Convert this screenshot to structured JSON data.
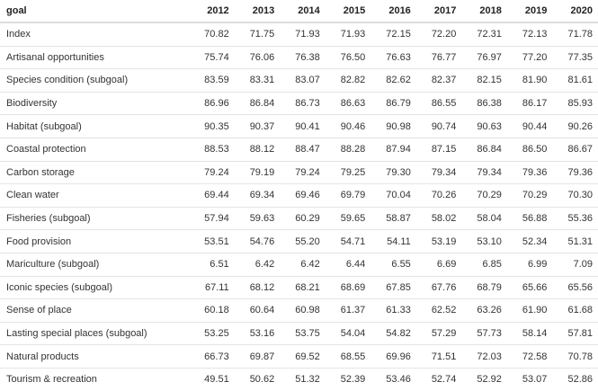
{
  "table": {
    "header_goal": "goal",
    "years": [
      "2012",
      "2013",
      "2014",
      "2015",
      "2016",
      "2017",
      "2018",
      "2019",
      "2020"
    ],
    "rows": [
      {
        "goal": "Index",
        "values": [
          "70.82",
          "71.75",
          "71.93",
          "71.93",
          "72.15",
          "72.20",
          "72.31",
          "72.13",
          "71.78"
        ]
      },
      {
        "goal": "Artisanal opportunities",
        "values": [
          "75.74",
          "76.06",
          "76.38",
          "76.50",
          "76.63",
          "76.77",
          "76.97",
          "77.20",
          "77.35"
        ]
      },
      {
        "goal": "Species condition (subgoal)",
        "values": [
          "83.59",
          "83.31",
          "83.07",
          "82.82",
          "82.62",
          "82.37",
          "82.15",
          "81.90",
          "81.61"
        ]
      },
      {
        "goal": "Biodiversity",
        "values": [
          "86.96",
          "86.84",
          "86.73",
          "86.63",
          "86.79",
          "86.55",
          "86.38",
          "86.17",
          "85.93"
        ]
      },
      {
        "goal": "Habitat (subgoal)",
        "values": [
          "90.35",
          "90.37",
          "90.41",
          "90.46",
          "90.98",
          "90.74",
          "90.63",
          "90.44",
          "90.26"
        ]
      },
      {
        "goal": "Coastal protection",
        "values": [
          "88.53",
          "88.12",
          "88.47",
          "88.28",
          "87.94",
          "87.15",
          "86.84",
          "86.50",
          "86.67"
        ]
      },
      {
        "goal": "Carbon storage",
        "values": [
          "79.24",
          "79.19",
          "79.24",
          "79.25",
          "79.30",
          "79.34",
          "79.34",
          "79.36",
          "79.36"
        ]
      },
      {
        "goal": "Clean water",
        "values": [
          "69.44",
          "69.34",
          "69.46",
          "69.79",
          "70.04",
          "70.26",
          "70.29",
          "70.29",
          "70.30"
        ]
      },
      {
        "goal": "Fisheries (subgoal)",
        "values": [
          "57.94",
          "59.63",
          "60.29",
          "59.65",
          "58.87",
          "58.02",
          "58.04",
          "56.88",
          "55.36"
        ]
      },
      {
        "goal": "Food provision",
        "values": [
          "53.51",
          "54.76",
          "55.20",
          "54.71",
          "54.11",
          "53.19",
          "53.10",
          "52.34",
          "51.31"
        ]
      },
      {
        "goal": "Mariculture (subgoal)",
        "values": [
          "6.51",
          "6.42",
          "6.42",
          "6.44",
          "6.55",
          "6.69",
          "6.85",
          "6.99",
          "7.09"
        ]
      },
      {
        "goal": "Iconic species (subgoal)",
        "values": [
          "67.11",
          "68.12",
          "68.21",
          "68.69",
          "67.85",
          "67.76",
          "68.79",
          "65.66",
          "65.56"
        ]
      },
      {
        "goal": "Sense of place",
        "values": [
          "60.18",
          "60.64",
          "60.98",
          "61.37",
          "61.33",
          "62.52",
          "63.26",
          "61.90",
          "61.68"
        ]
      },
      {
        "goal": "Lasting special places (subgoal)",
        "values": [
          "53.25",
          "53.16",
          "53.75",
          "54.04",
          "54.82",
          "57.29",
          "57.73",
          "58.14",
          "57.81"
        ]
      },
      {
        "goal": "Natural products",
        "values": [
          "66.73",
          "69.87",
          "69.52",
          "68.55",
          "69.96",
          "71.51",
          "72.03",
          "72.58",
          "70.78"
        ]
      },
      {
        "goal": "Tourism & recreation",
        "values": [
          "49.51",
          "50.62",
          "51.32",
          "52.39",
          "53.46",
          "52.74",
          "52.92",
          "53.07",
          "52.86"
        ]
      }
    ]
  }
}
